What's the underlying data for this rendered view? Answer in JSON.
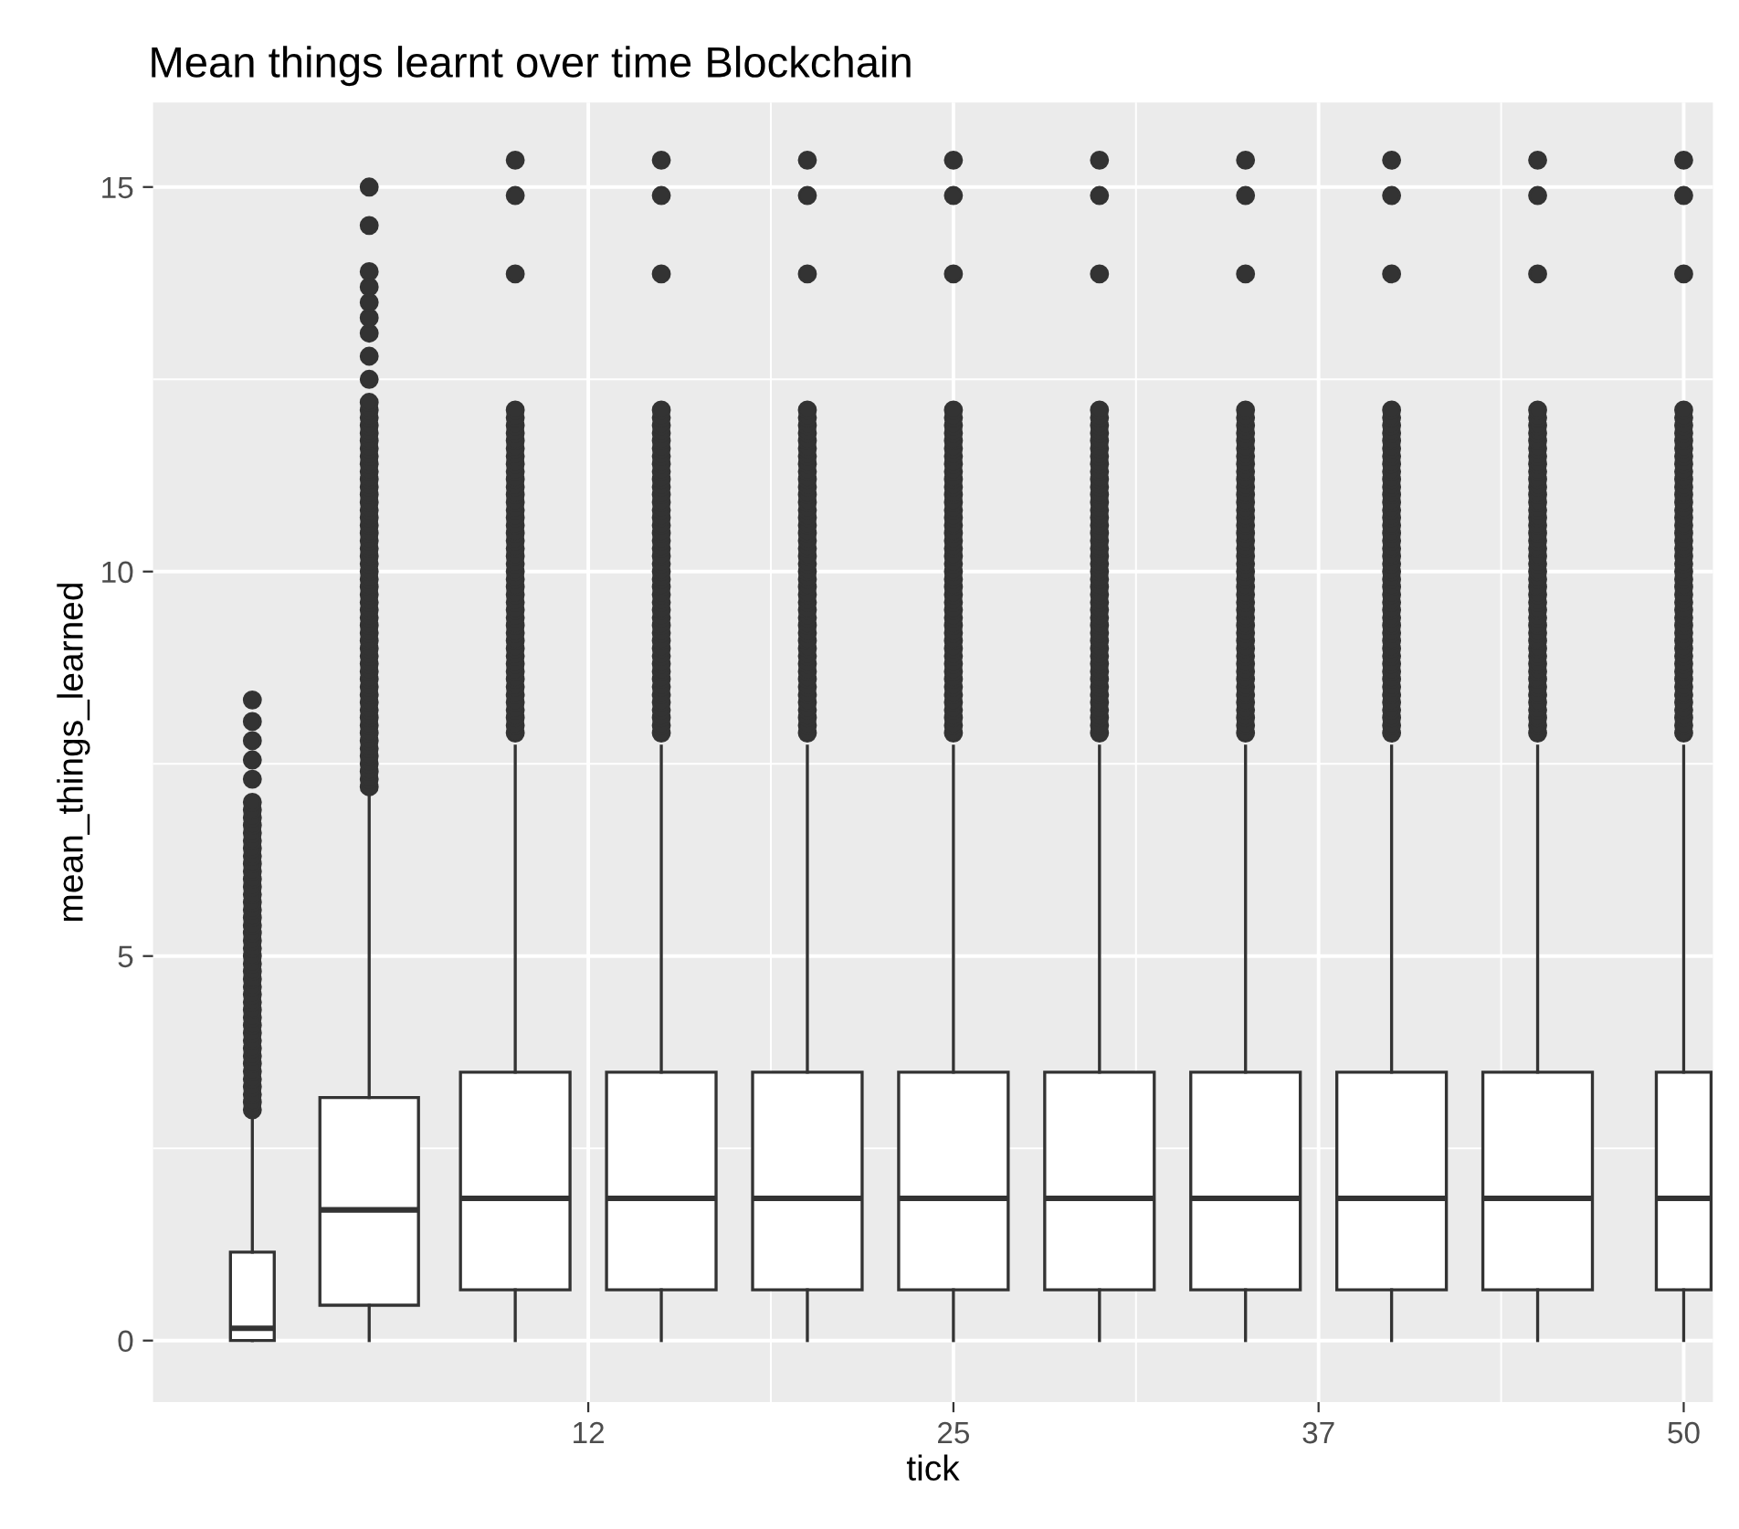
{
  "chart_data": {
    "type": "box",
    "title": "Mean things learnt over time Blockchain",
    "xlabel": "tick",
    "ylabel": "mean_things_learned",
    "x": [
      1,
      5,
      10,
      15,
      20,
      25,
      30,
      35,
      40,
      45,
      50
    ],
    "boxes": [
      {
        "low": 0,
        "q1": 0,
        "median": 0.16,
        "q3": 1.15,
        "high": 2.95,
        "outliers": [
          3.0,
          3.1,
          3.2,
          3.3,
          3.4,
          3.5,
          3.6,
          3.7,
          3.8,
          3.9,
          4.0,
          4.1,
          4.2,
          4.3,
          4.4,
          4.5,
          4.6,
          4.7,
          4.8,
          4.9,
          5.0,
          5.1,
          5.2,
          5.3,
          5.4,
          5.5,
          5.6,
          5.7,
          5.8,
          5.9,
          6.0,
          6.1,
          6.2,
          6.3,
          6.4,
          6.5,
          6.6,
          6.7,
          6.8,
          6.9,
          7.0,
          7.3,
          7.55,
          7.8,
          8.05,
          8.33
        ]
      },
      {
        "low": 0,
        "q1": 0.46,
        "median": 1.7,
        "q3": 3.16,
        "high": 7.12,
        "outliers": [
          7.2,
          7.3,
          7.4,
          7.5,
          7.6,
          7.7,
          7.8,
          7.9,
          8.0,
          8.1,
          8.2,
          8.3,
          8.4,
          8.5,
          8.6,
          8.7,
          8.8,
          8.9,
          9.0,
          9.1,
          9.2,
          9.3,
          9.4,
          9.5,
          9.6,
          9.7,
          9.8,
          9.9,
          10.0,
          10.1,
          10.2,
          10.3,
          10.4,
          10.5,
          10.6,
          10.7,
          10.8,
          10.9,
          11.0,
          11.1,
          11.2,
          11.3,
          11.4,
          11.5,
          11.6,
          11.7,
          11.8,
          11.9,
          12.0,
          12.1,
          12.2,
          12.5,
          12.8,
          13.1,
          13.3,
          13.5,
          13.7,
          13.9,
          14.5,
          15.0
        ]
      },
      {
        "low": 0,
        "q1": 0.66,
        "median": 1.85,
        "q3": 3.49,
        "high": 7.73,
        "outliers": [
          7.9,
          8.0,
          8.1,
          8.2,
          8.3,
          8.4,
          8.5,
          8.6,
          8.7,
          8.8,
          8.9,
          9.0,
          9.1,
          9.2,
          9.3,
          9.4,
          9.5,
          9.6,
          9.7,
          9.8,
          9.9,
          10.0,
          10.1,
          10.2,
          10.3,
          10.4,
          10.5,
          10.6,
          10.7,
          10.8,
          10.9,
          11.0,
          11.1,
          11.2,
          11.3,
          11.4,
          11.5,
          11.6,
          11.7,
          11.8,
          11.9,
          12.0,
          12.1,
          13.87,
          14.89,
          15.35
        ]
      },
      {
        "low": 0,
        "q1": 0.66,
        "median": 1.85,
        "q3": 3.49,
        "high": 7.73,
        "outliers": [
          7.9,
          8.0,
          8.1,
          8.2,
          8.3,
          8.4,
          8.5,
          8.6,
          8.7,
          8.8,
          8.9,
          9.0,
          9.1,
          9.2,
          9.3,
          9.4,
          9.5,
          9.6,
          9.7,
          9.8,
          9.9,
          10.0,
          10.1,
          10.2,
          10.3,
          10.4,
          10.5,
          10.6,
          10.7,
          10.8,
          10.9,
          11.0,
          11.1,
          11.2,
          11.3,
          11.4,
          11.5,
          11.6,
          11.7,
          11.8,
          11.9,
          12.0,
          12.1,
          13.87,
          14.89,
          15.35
        ]
      },
      {
        "low": 0,
        "q1": 0.66,
        "median": 1.85,
        "q3": 3.49,
        "high": 7.73,
        "outliers": [
          7.9,
          8.0,
          8.1,
          8.2,
          8.3,
          8.4,
          8.5,
          8.6,
          8.7,
          8.8,
          8.9,
          9.0,
          9.1,
          9.2,
          9.3,
          9.4,
          9.5,
          9.6,
          9.7,
          9.8,
          9.9,
          10.0,
          10.1,
          10.2,
          10.3,
          10.4,
          10.5,
          10.6,
          10.7,
          10.8,
          10.9,
          11.0,
          11.1,
          11.2,
          11.3,
          11.4,
          11.5,
          11.6,
          11.7,
          11.8,
          11.9,
          12.0,
          12.1,
          13.87,
          14.89,
          15.35
        ]
      },
      {
        "low": 0,
        "q1": 0.66,
        "median": 1.85,
        "q3": 3.49,
        "high": 7.73,
        "outliers": [
          7.9,
          8.0,
          8.1,
          8.2,
          8.3,
          8.4,
          8.5,
          8.6,
          8.7,
          8.8,
          8.9,
          9.0,
          9.1,
          9.2,
          9.3,
          9.4,
          9.5,
          9.6,
          9.7,
          9.8,
          9.9,
          10.0,
          10.1,
          10.2,
          10.3,
          10.4,
          10.5,
          10.6,
          10.7,
          10.8,
          10.9,
          11.0,
          11.1,
          11.2,
          11.3,
          11.4,
          11.5,
          11.6,
          11.7,
          11.8,
          11.9,
          12.0,
          12.1,
          13.87,
          14.89,
          15.35
        ]
      },
      {
        "low": 0,
        "q1": 0.66,
        "median": 1.85,
        "q3": 3.49,
        "high": 7.73,
        "outliers": [
          7.9,
          8.0,
          8.1,
          8.2,
          8.3,
          8.4,
          8.5,
          8.6,
          8.7,
          8.8,
          8.9,
          9.0,
          9.1,
          9.2,
          9.3,
          9.4,
          9.5,
          9.6,
          9.7,
          9.8,
          9.9,
          10.0,
          10.1,
          10.2,
          10.3,
          10.4,
          10.5,
          10.6,
          10.7,
          10.8,
          10.9,
          11.0,
          11.1,
          11.2,
          11.3,
          11.4,
          11.5,
          11.6,
          11.7,
          11.8,
          11.9,
          12.0,
          12.1,
          13.87,
          14.89,
          15.35
        ]
      },
      {
        "low": 0,
        "q1": 0.66,
        "median": 1.85,
        "q3": 3.49,
        "high": 7.73,
        "outliers": [
          7.9,
          8.0,
          8.1,
          8.2,
          8.3,
          8.4,
          8.5,
          8.6,
          8.7,
          8.8,
          8.9,
          9.0,
          9.1,
          9.2,
          9.3,
          9.4,
          9.5,
          9.6,
          9.7,
          9.8,
          9.9,
          10.0,
          10.1,
          10.2,
          10.3,
          10.4,
          10.5,
          10.6,
          10.7,
          10.8,
          10.9,
          11.0,
          11.1,
          11.2,
          11.3,
          11.4,
          11.5,
          11.6,
          11.7,
          11.8,
          11.9,
          12.0,
          12.1,
          13.87,
          14.89,
          15.35
        ]
      },
      {
        "low": 0,
        "q1": 0.66,
        "median": 1.85,
        "q3": 3.49,
        "high": 7.73,
        "outliers": [
          7.9,
          8.0,
          8.1,
          8.2,
          8.3,
          8.4,
          8.5,
          8.6,
          8.7,
          8.8,
          8.9,
          9.0,
          9.1,
          9.2,
          9.3,
          9.4,
          9.5,
          9.6,
          9.7,
          9.8,
          9.9,
          10.0,
          10.1,
          10.2,
          10.3,
          10.4,
          10.5,
          10.6,
          10.7,
          10.8,
          10.9,
          11.0,
          11.1,
          11.2,
          11.3,
          11.4,
          11.5,
          11.6,
          11.7,
          11.8,
          11.9,
          12.0,
          12.1,
          13.87,
          14.89,
          15.35
        ]
      },
      {
        "low": 0,
        "q1": 0.66,
        "median": 1.85,
        "q3": 3.49,
        "high": 7.73,
        "outliers": [
          7.9,
          8.0,
          8.1,
          8.2,
          8.3,
          8.4,
          8.5,
          8.6,
          8.7,
          8.8,
          8.9,
          9.0,
          9.1,
          9.2,
          9.3,
          9.4,
          9.5,
          9.6,
          9.7,
          9.8,
          9.9,
          10.0,
          10.1,
          10.2,
          10.3,
          10.4,
          10.5,
          10.6,
          10.7,
          10.8,
          10.9,
          11.0,
          11.1,
          11.2,
          11.3,
          11.4,
          11.5,
          11.6,
          11.7,
          11.8,
          11.9,
          12.0,
          12.1,
          13.87,
          14.89,
          15.35
        ]
      },
      {
        "low": 0,
        "q1": 0.66,
        "median": 1.85,
        "q3": 3.49,
        "high": 7.73,
        "outliers": [
          7.9,
          8.0,
          8.1,
          8.2,
          8.3,
          8.4,
          8.5,
          8.6,
          8.7,
          8.8,
          8.9,
          9.0,
          9.1,
          9.2,
          9.3,
          9.4,
          9.5,
          9.6,
          9.7,
          9.8,
          9.9,
          10.0,
          10.1,
          10.2,
          10.3,
          10.4,
          10.5,
          10.6,
          10.7,
          10.8,
          10.9,
          11.0,
          11.1,
          11.2,
          11.3,
          11.4,
          11.5,
          11.6,
          11.7,
          11.8,
          11.9,
          12.0,
          12.1,
          13.87,
          14.89,
          15.35
        ]
      }
    ],
    "xlim": [
      -2.4,
      51.0
    ],
    "xticks": [
      {
        "value": 12.5,
        "label": "12"
      },
      25,
      {
        "value": 37.5,
        "label": "37"
      },
      50
    ],
    "ylim": [
      -0.8,
      16.1
    ],
    "yticks": [
      0,
      5,
      10,
      15
    ],
    "grid": true
  }
}
